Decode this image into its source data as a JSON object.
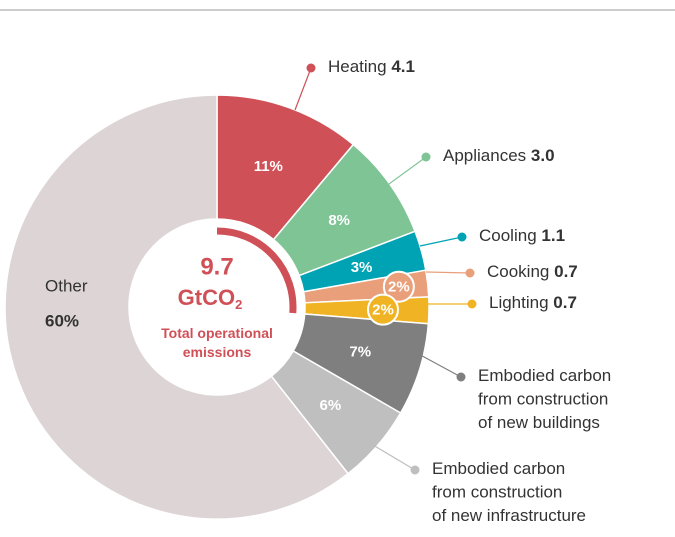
{
  "chart_data": {
    "type": "donut",
    "center_value": "9.7",
    "center_unit": "GtCO",
    "center_unit_sub": "2",
    "center_label": "Total operational emissions",
    "categories": [
      "Heating",
      "Appliances",
      "Cooling",
      "Cooking",
      "Lighting",
      "Embodied carbon\nfrom construction\nof new buildings",
      "Embodied carbon\nfrom construction\nof new infrastructure",
      "Other"
    ],
    "values": [
      11,
      8,
      3,
      2,
      2,
      7,
      6,
      60
    ],
    "value_labels": [
      "11%",
      "8%",
      "3%",
      "2%",
      "2%",
      "7%",
      "6%",
      "60%"
    ],
    "amount_labels": [
      "4.1",
      "3.0",
      "1.1",
      "0.7",
      "0.7",
      null,
      null,
      null
    ],
    "colors": [
      "#cf5057",
      "#7ec495",
      "#00a3b4",
      "#e9a07a",
      "#f0b323",
      "#7f7f7f",
      "#bfbfbf",
      "#ddd5d5"
    ]
  }
}
